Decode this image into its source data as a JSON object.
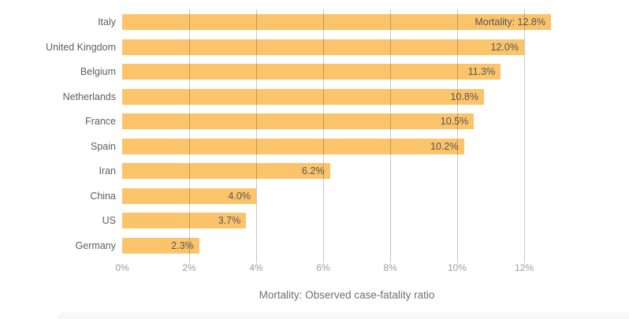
{
  "chart_data": {
    "type": "bar",
    "orientation": "horizontal",
    "title": "",
    "xlabel": "Mortality: Observed case-fatality ratio",
    "ylabel": "",
    "categories": [
      "Italy",
      "United Kingdom",
      "Belgium",
      "Netherlands",
      "France",
      "Spain",
      "Iran",
      "China",
      "US",
      "Germany"
    ],
    "values": [
      12.8,
      12.0,
      11.3,
      10.8,
      10.5,
      10.2,
      6.2,
      4.0,
      3.7,
      2.3
    ],
    "bar_labels": [
      "Mortality: 12.8%",
      "12.0%",
      "11.3%",
      "10.8%",
      "10.5%",
      "10.2%",
      "6.2%",
      "4.0%",
      "3.7%",
      "2.3%"
    ],
    "x_ticks": [
      0,
      2,
      4,
      6,
      8,
      10,
      12
    ],
    "x_tick_labels": [
      "0%",
      "2%",
      "4%",
      "6%",
      "8%",
      "10%",
      "12%"
    ],
    "xlim": [
      0,
      12.8
    ],
    "grid": "vertical-gridlines-at-2pct-intervals",
    "legend": false
  },
  "colors": {
    "bar": "#FBC46A",
    "gridline": "#c7c7c7",
    "category_label": "#5c5e62",
    "value_label": "#55565a",
    "tick_label": "#9b9b9b",
    "axis_title": "#6e7073",
    "footer_band": "#f7f7f8"
  }
}
